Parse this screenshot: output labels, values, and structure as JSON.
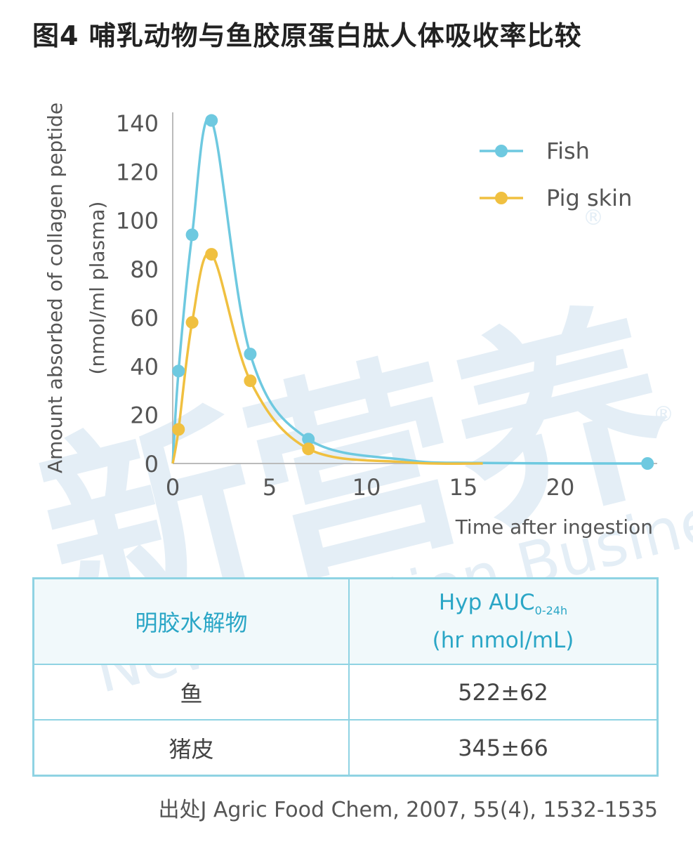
{
  "title": "图4 哺乳动物与鱼胶原蛋白肽人体吸收率比较",
  "chart_data": {
    "type": "line",
    "ylabel_line1": "Amount absorbed of  collagen peptide",
    "ylabel_line2": "(nmol/ml plasma)",
    "xlabel": "Time after ingestion",
    "xlim": [
      0,
      25
    ],
    "ylim": [
      0,
      140
    ],
    "xticks": [
      0,
      5,
      10,
      15,
      20
    ],
    "yticks": [
      0,
      20,
      40,
      60,
      80,
      100,
      120,
      140
    ],
    "grid": false,
    "legend_position": "top-right",
    "series": [
      {
        "name": "Fish",
        "color": "#6ec9e0",
        "x": [
          0.3,
          1,
          2,
          4,
          7,
          24.5
        ],
        "y": [
          38,
          94,
          141,
          45,
          10,
          0
        ]
      },
      {
        "name": "Pig skin",
        "color": "#f0c040",
        "x": [
          0.3,
          1,
          2,
          4,
          7
        ],
        "y": [
          14,
          58,
          86,
          34,
          6
        ]
      }
    ]
  },
  "table": {
    "header_col1": "明胶水解物",
    "header_col2_main": "Hyp AUC",
    "header_col2_sub": "0-24h",
    "header_col2_unit": "(hr nmol/mL)",
    "rows": [
      {
        "name": "鱼",
        "value": "522±62"
      },
      {
        "name": "猪皮",
        "value": "345±66"
      }
    ]
  },
  "source": "出处J Agric Food Chem, 2007, 55(4), 1532-1535",
  "watermark": {
    "logo_text": "新营养",
    "sub_text": "New Nutrition Business",
    "mark": "®"
  }
}
